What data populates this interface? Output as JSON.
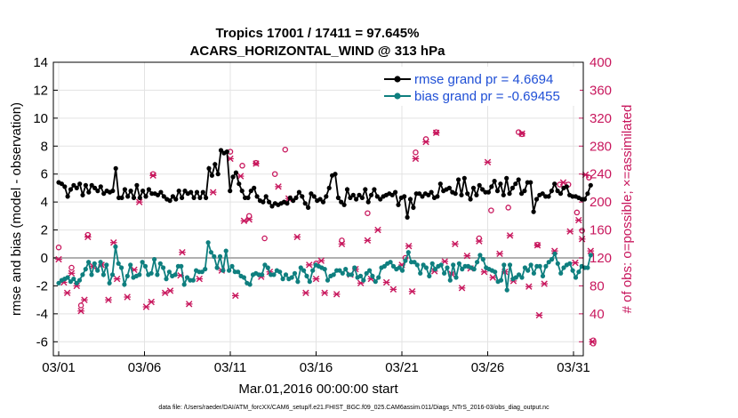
{
  "chart_data": {
    "type": "line",
    "title_line1": "Tropics 17001 / 17411 = 97.645%",
    "title_line2": "ACARS_HORIZONTAL_WIND @ 313 hPa",
    "ylabel_left": "rmse and bias (model - observation)",
    "ylabel_right": "# of obs: o=possible; ×=assimilated",
    "xlabel": "Mar.01,2016 00:00:00 start",
    "footer": "data file: /Users/raeder/DAI/ATM_forcXX/CAM6_setup/f.e21.FHIST_BGC.f09_025.CAM6assim.011/Diags_NTrS_2016-03/obs_diag_output.nc",
    "ylim_left": [
      -7,
      14
    ],
    "yticks_left": [
      "14",
      "12",
      "10",
      "8",
      "6",
      "4",
      "2",
      "0",
      "-2",
      "-4",
      "-6"
    ],
    "ylim_right": [
      -20,
      400
    ],
    "yticks_right": [
      "400",
      "360",
      "320",
      "280",
      "240",
      "200",
      "160",
      "120",
      "80",
      "40",
      "0"
    ],
    "xlim": [
      0,
      31
    ],
    "xticks": [
      {
        "x": 0,
        "label": "03/01"
      },
      {
        "x": 5,
        "label": "03/06"
      },
      {
        "x": 10,
        "label": "03/11"
      },
      {
        "x": 15,
        "label": "03/16"
      },
      {
        "x": 20,
        "label": "03/21"
      },
      {
        "x": 25,
        "label": "03/26"
      },
      {
        "x": 30,
        "label": "03/31"
      }
    ],
    "grid": true,
    "legend_position": "top-right",
    "series": [
      {
        "name": "rmse grand pr = 4.6694",
        "color": "#000000",
        "values": [
          5.4,
          5.3,
          5.1,
          4.4,
          4.9,
          5.2,
          5.0,
          5.3,
          4.5,
          5.2,
          4.7,
          5.2,
          5.0,
          4.8,
          5.1,
          4.6,
          4.8,
          4.7,
          4.8,
          6.4,
          4.3,
          4.3,
          4.9,
          4.4,
          4.8,
          4.3,
          5.2,
          4.3,
          4.8,
          4.4,
          4.9,
          4.6,
          4.6,
          4.5,
          4.7,
          4.4,
          4.2,
          4.1,
          4.4,
          4.2,
          4.8,
          4.3,
          4.8,
          4.6,
          4.7,
          4.3,
          4.7,
          4.3,
          4.7,
          4.3,
          6.4,
          5.9,
          6.7,
          6.0,
          7.7,
          7.5,
          7.6,
          4.8,
          5.8,
          6.1,
          5.3,
          4.8,
          4.3,
          4.3,
          4.8,
          5.0,
          4.4,
          4.1,
          4.0,
          4.4,
          4.0,
          3.7,
          3.9,
          3.8,
          3.9,
          4.0,
          3.9,
          4.3,
          4.1,
          4.3,
          4.7,
          4.4,
          3.9,
          3.6,
          4.6,
          4.4,
          4.1,
          4.2,
          4.0,
          4.4,
          5.0,
          5.9,
          6.0,
          4.3,
          4.0,
          3.8,
          4.9,
          4.3,
          4.5,
          4.2,
          4.5,
          4.3,
          4.9,
          4.0,
          4.5,
          4.9,
          4.4,
          4.2,
          4.4,
          4.5,
          4.6,
          4.5,
          4.7,
          3.8,
          4.3,
          4.4,
          2.9,
          4.2,
          3.6,
          4.6,
          4.6,
          4.4,
          4.6,
          4.5,
          4.7,
          4.3,
          4.4,
          5.3,
          4.8,
          4.9,
          5.0,
          4.7,
          4.6,
          5.6,
          4.5,
          5.7,
          4.6,
          4.2,
          5.0,
          4.5,
          5.2,
          4.9,
          4.7,
          4.7,
          5.1,
          5.5,
          4.8,
          5.3,
          4.5,
          5.7,
          4.6,
          5.0,
          5.3,
          5.6,
          4.6,
          4.8,
          5.4,
          5.4,
          3.3,
          4.2,
          4.5,
          4.6,
          4.4,
          4.4,
          4.8,
          5.3,
          4.8,
          4.6,
          5.0,
          5.1,
          4.5,
          4.4,
          4.4,
          4.3,
          4.2,
          4.2,
          4.6,
          5.2
        ]
      },
      {
        "name": "bias grand pr = -0.69455",
        "color": "#0f7f7f",
        "values": [
          -1.8,
          -1.6,
          -1.5,
          -1.4,
          -1.7,
          -1.5,
          -1.8,
          -1.6,
          -1.2,
          -0.8,
          -0.3,
          -1.2,
          -0.4,
          -0.9,
          -0.3,
          -1.2,
          -0.5,
          -1.8,
          -1.2,
          0.8,
          -0.4,
          -0.7,
          -1.9,
          -1.3,
          -0.5,
          -1.4,
          -1.3,
          -1.2,
          -0.3,
          -0.6,
          -1.2,
          -1.1,
          -0.1,
          -1.2,
          -0.4,
          -0.7,
          -1.5,
          -1.0,
          -1.3,
          -1.2,
          -0.6,
          -0.6,
          -1.9,
          -1.4,
          -1.6,
          -1.6,
          -0.9,
          -1.0,
          -1.0,
          -0.8,
          1.1,
          0.4,
          0.1,
          -0.7,
          0.1,
          -0.9,
          0.5,
          -0.9,
          -0.6,
          -1.0,
          -1.0,
          -1.3,
          -1.4,
          -1.8,
          -1.9,
          -1.2,
          -1.1,
          -1.2,
          -1.2,
          -0.5,
          -0.7,
          -1.2,
          -1.2,
          -0.9,
          -1.0,
          -1.5,
          -1.2,
          -1.5,
          -1.4,
          -1.1,
          -1.7,
          -0.7,
          -0.9,
          -1.3,
          -1.7,
          -0.9,
          -0.5,
          -0.6,
          -0.7,
          -0.8,
          -1.6,
          -1.3,
          -1.2,
          -0.9,
          -0.9,
          -1.1,
          -0.8,
          -1.2,
          -1.2,
          -0.7,
          -1.4,
          -1.3,
          -1.6,
          -1.1,
          -0.9,
          -1.3,
          -1.7,
          -1.4,
          -0.7,
          -0.6,
          -0.4,
          -0.3,
          -0.6,
          -0.8,
          -0.7,
          -0.9,
          -0.2,
          0.4,
          -0.3,
          -0.3,
          -0.5,
          -1.1,
          -0.5,
          -0.7,
          -1.3,
          -0.4,
          -0.8,
          -0.6,
          -0.5,
          -1.1,
          -0.7,
          -1.6,
          -0.5,
          -1.4,
          -0.4,
          -0.8,
          -0.6,
          -0.6,
          -0.7,
          -0.8,
          -0.3,
          0.2,
          -0.1,
          -0.7,
          -0.8,
          -0.9,
          -1.0,
          -1.7,
          -1.6,
          -0.5,
          -2.3,
          -0.5,
          -1.5,
          -1.4,
          -1.2,
          -1.4,
          -0.7,
          -0.9,
          -0.5,
          -1.1,
          -0.6,
          -0.6,
          -1.3,
          -0.6,
          -0.3,
          -0.1,
          0.3,
          -0.4,
          -1.1,
          -0.7,
          -0.5,
          -0.4,
          -0.9,
          -1.4,
          -1.0,
          -0.6,
          -0.7,
          -0.7,
          0.2
        ]
      }
    ],
    "obs_possible": [
      [
        0,
        135
      ],
      [
        0.75,
        106
      ],
      [
        1.3,
        52
      ],
      [
        1.7,
        153
      ],
      [
        5.5,
        240
      ],
      [
        10,
        272
      ],
      [
        10.7,
        252
      ],
      [
        11.1,
        180
      ],
      [
        11.5,
        256
      ],
      [
        12,
        148
      ],
      [
        12.6,
        240
      ],
      [
        13.2,
        275
      ],
      [
        15,
        112
      ],
      [
        16.5,
        145
      ],
      [
        18,
        184
      ],
      [
        20.2,
        120
      ],
      [
        20.8,
        271
      ],
      [
        21.4,
        290
      ],
      [
        22,
        300
      ],
      [
        24.5,
        148
      ],
      [
        25.2,
        188
      ],
      [
        26.2,
        192
      ],
      [
        26.8,
        300
      ],
      [
        27,
        297
      ],
      [
        27.9,
        139
      ],
      [
        29.2,
        225
      ],
      [
        29.7,
        225
      ],
      [
        30.2,
        185
      ],
      [
        30.5,
        159
      ],
      [
        30.9,
        235
      ]
    ],
    "obs_assimilated": [
      [
        0,
        118
      ],
      [
        0.3,
        85
      ],
      [
        0.5,
        70
      ],
      [
        0.75,
        98
      ],
      [
        1.05,
        80
      ],
      [
        1.3,
        44
      ],
      [
        1.5,
        60
      ],
      [
        1.7,
        150
      ],
      [
        2,
        108
      ],
      [
        2.5,
        110
      ],
      [
        2.9,
        60
      ],
      [
        3.2,
        142
      ],
      [
        3.4,
        90
      ],
      [
        4,
        64
      ],
      [
        4.4,
        103
      ],
      [
        4.7,
        200
      ],
      [
        5.1,
        50
      ],
      [
        5.4,
        57
      ],
      [
        5.5,
        238
      ],
      [
        6.2,
        70
      ],
      [
        6.5,
        73
      ],
      [
        7.1,
        95
      ],
      [
        7.2,
        128
      ],
      [
        7.6,
        54
      ],
      [
        8.2,
        90
      ],
      [
        9,
        214
      ],
      [
        9.5,
        102
      ],
      [
        10,
        262
      ],
      [
        10.3,
        66
      ],
      [
        10.6,
        237
      ],
      [
        10.8,
        173
      ],
      [
        11.1,
        175
      ],
      [
        11.5,
        255
      ],
      [
        11.8,
        93
      ],
      [
        12.3,
        100
      ],
      [
        12.8,
        222
      ],
      [
        13.4,
        205
      ],
      [
        13.9,
        150
      ],
      [
        14.4,
        70
      ],
      [
        14.6,
        110
      ],
      [
        15,
        90
      ],
      [
        15.3,
        116
      ],
      [
        15.5,
        70
      ],
      [
        16.2,
        68
      ],
      [
        16.5,
        140
      ],
      [
        17,
        96
      ],
      [
        17.3,
        104
      ],
      [
        17.6,
        84
      ],
      [
        18,
        145
      ],
      [
        18.2,
        90
      ],
      [
        18.6,
        160
      ],
      [
        19.1,
        85
      ],
      [
        19.5,
        75
      ],
      [
        20,
        110
      ],
      [
        20.4,
        137
      ],
      [
        20.6,
        72
      ],
      [
        20.8,
        262
      ],
      [
        21.4,
        286
      ],
      [
        21.9,
        101
      ],
      [
        22,
        299
      ],
      [
        22.5,
        115
      ],
      [
        22.9,
        97
      ],
      [
        23.1,
        140
      ],
      [
        23.5,
        77
      ],
      [
        23.8,
        123
      ],
      [
        24,
        105
      ],
      [
        24.5,
        144
      ],
      [
        24.8,
        100
      ],
      [
        25,
        257
      ],
      [
        25.3,
        92
      ],
      [
        25.7,
        126
      ],
      [
        26,
        100
      ],
      [
        26.3,
        152
      ],
      [
        26.5,
        87
      ],
      [
        27,
        298
      ],
      [
        27.4,
        79
      ],
      [
        27.9,
        138
      ],
      [
        28,
        38
      ],
      [
        28.3,
        83
      ],
      [
        28.9,
        130
      ],
      [
        29.4,
        228
      ],
      [
        29.8,
        158
      ],
      [
        30.1,
        113
      ],
      [
        30.3,
        174
      ],
      [
        30.5,
        147
      ],
      [
        30.7,
        239
      ],
      [
        31,
        130
      ],
      [
        31.1,
        0
      ]
    ],
    "obs_color": "#c8175d"
  }
}
